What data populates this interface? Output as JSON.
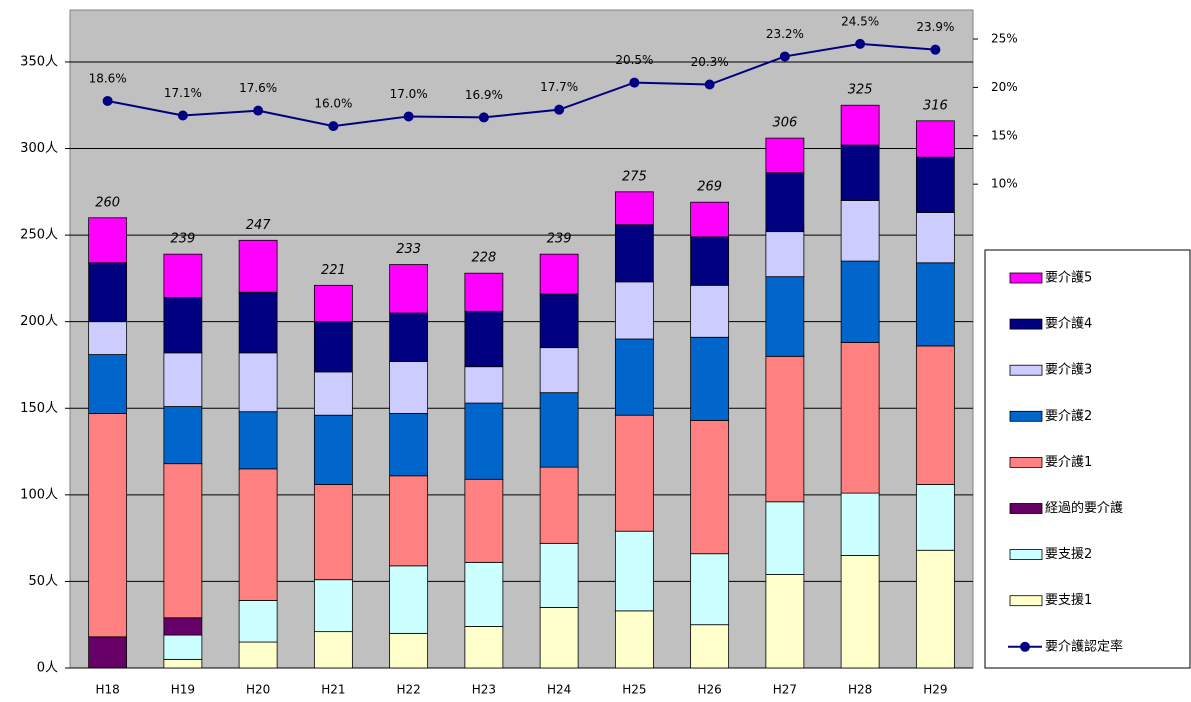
{
  "chart_data": {
    "type": "bar",
    "categories": [
      "H18",
      "H19",
      "H20",
      "H21",
      "H22",
      "H23",
      "H24",
      "H25",
      "H26",
      "H27",
      "H28",
      "H29"
    ],
    "series": [
      {
        "name": "要支援1",
        "color": "#ffffcc",
        "values": [
          0,
          5,
          15,
          21,
          20,
          24,
          35,
          33,
          25,
          54,
          65,
          68
        ]
      },
      {
        "name": "要支援2",
        "color": "#ccffff",
        "values": [
          0,
          14,
          24,
          30,
          39,
          37,
          37,
          46,
          41,
          42,
          36,
          38
        ]
      },
      {
        "name": "経過的要介護",
        "color": "#660066",
        "values": [
          18,
          10,
          0,
          0,
          0,
          0,
          0,
          0,
          0,
          0,
          0,
          0
        ]
      },
      {
        "name": "要介護1",
        "color": "#ff8080",
        "values": [
          129,
          89,
          76,
          55,
          52,
          48,
          44,
          67,
          77,
          84,
          87,
          80
        ]
      },
      {
        "name": "要介護2",
        "color": "#0066cc",
        "values": [
          34,
          33,
          33,
          40,
          36,
          44,
          43,
          44,
          48,
          46,
          47,
          48
        ]
      },
      {
        "name": "要介護3",
        "color": "#ccccff",
        "values": [
          19,
          31,
          34,
          25,
          30,
          21,
          26,
          33,
          30,
          26,
          35,
          29
        ]
      },
      {
        "name": "要介護4",
        "color": "#000080",
        "values": [
          34,
          32,
          35,
          29,
          28,
          32,
          31,
          33,
          28,
          34,
          32,
          32
        ]
      },
      {
        "name": "要介護5",
        "color": "#ff00ff",
        "values": [
          26,
          25,
          30,
          21,
          28,
          22,
          23,
          19,
          20,
          20,
          23,
          21
        ]
      },
      {
        "name": "要介護認定率",
        "color": "#000080",
        "axis": "y2",
        "type": "line",
        "values": [
          18.6,
          17.1,
          17.6,
          16.0,
          17.0,
          16.9,
          17.7,
          20.5,
          20.3,
          23.2,
          24.5,
          23.9
        ],
        "value_labels": [
          "18.6%",
          "17.1%",
          "17.6%",
          "16.0%",
          "17.0%",
          "16.9%",
          "17.7%",
          "20.5%",
          "20.3%",
          "23.2%",
          "24.5%",
          "23.9%"
        ]
      }
    ],
    "totals": [
      260,
      239,
      247,
      221,
      233,
      228,
      239,
      275,
      269,
      306,
      325,
      316
    ],
    "ylim": [
      0,
      380
    ],
    "yticks": [
      {
        "value": 0,
        "label": "0人"
      },
      {
        "value": 50,
        "label": "50人"
      },
      {
        "value": 100,
        "label": "100人"
      },
      {
        "value": 150,
        "label": "150人"
      },
      {
        "value": 200,
        "label": "200人"
      },
      {
        "value": 250,
        "label": "250人"
      },
      {
        "value": 300,
        "label": "300人"
      },
      {
        "value": 350,
        "label": "350人"
      }
    ],
    "y2lim": [
      -40,
      28
    ],
    "y2ticks": [
      {
        "value": 10,
        "label": "10%"
      },
      {
        "value": 15,
        "label": "15%"
      },
      {
        "value": 20,
        "label": "20%"
      },
      {
        "value": 25,
        "label": "25%"
      }
    ],
    "grid": true,
    "legend": "right"
  }
}
